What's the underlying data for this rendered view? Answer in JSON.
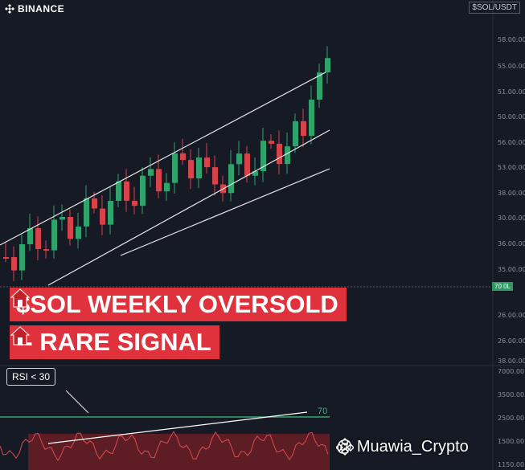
{
  "header": {
    "brand": "BINANCE",
    "pair": "$SOL/USDT"
  },
  "price_axis": [
    "58.00.00",
    "55.00.00",
    "51.00.00",
    "50.00.00",
    "56.00.00",
    "53.00.00",
    "38.00.00",
    "30.00.00",
    "36.00.00",
    "35.00.00",
    "26.00.00",
    "26.00.00",
    "38.00.00"
  ],
  "price_tag": "70 0L",
  "headline": {
    "line1": "$SOL WEEKLY OVERSOLD",
    "line2": "-- RARE SIGNAL"
  },
  "rsi_panel": {
    "label": "RSI < 30",
    "level": "70",
    "axis": [
      "7000.00",
      "3500.00",
      "2500.00",
      "1500.00",
      "1150.00"
    ]
  },
  "watermark": "@ Muawia_Crypto"
}
